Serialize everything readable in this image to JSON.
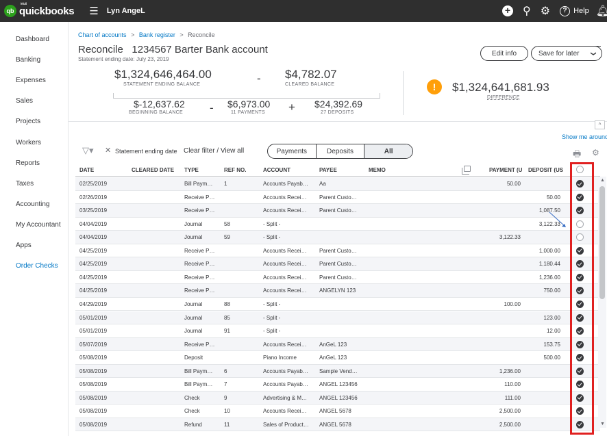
{
  "app": {
    "logo_small": "intuit",
    "logo_text": "quickbooks",
    "company": "Lyn AngeL",
    "help_label": "Help"
  },
  "sidebar": {
    "items": [
      {
        "label": "Dashboard"
      },
      {
        "label": "Banking"
      },
      {
        "label": "Expenses"
      },
      {
        "label": "Sales"
      },
      {
        "label": "Projects"
      },
      {
        "label": "Workers"
      },
      {
        "label": "Reports"
      },
      {
        "label": "Taxes"
      },
      {
        "label": "Accounting"
      },
      {
        "label": "My Accountant"
      },
      {
        "label": "Apps"
      },
      {
        "label": "Order Checks"
      }
    ]
  },
  "breadcrumb": {
    "chart": "Chart of accounts",
    "register": "Bank register",
    "current": "Reconcile",
    "sep": ">"
  },
  "header": {
    "title": "Reconcile   1234567 Barter Bank account",
    "subtitle": "Statement ending date: July 23, 2019",
    "edit_info": "Edit info",
    "save_later": "Save for later",
    "save_caret": "❯"
  },
  "summary": {
    "statement_ending_balance": "$1,324,646,464.00",
    "statement_ending_label": "STATEMENT ENDING BALANCE",
    "minus1": "-",
    "cleared_balance": "$4,782.07",
    "cleared_label": "CLEARED BALANCE",
    "beginning_balance": "$-12,637.62",
    "beginning_label": "BEGINNING BALANCE",
    "minus2": "-",
    "payments": "$6,973.00",
    "payments_label": "11 PAYMENTS",
    "plus": "+",
    "deposits": "$24,392.69",
    "deposits_label": "27 DEPOSITS",
    "difference": "$1,324,641,681.93",
    "difference_label": "DIFFERENCE",
    "warning_glyph": "!"
  },
  "toolbar": {
    "show_more": "Show me around",
    "filter_text": "Statement ending date",
    "clear_filter": "Clear filter / View all",
    "tabs": [
      "Payments",
      "Deposits",
      "All"
    ],
    "active_tab": "All",
    "collapse_glyph": "^"
  },
  "table": {
    "headers": {
      "date": "DATE",
      "cleared": "CLEARED DATE",
      "type": "TYPE",
      "ref": "REF NO.",
      "account": "ACCOUNT",
      "payee": "PAYEE",
      "memo": "MEMO",
      "payment": "PAYMENT (U",
      "deposit": "DEPOSIT (US"
    },
    "rows": [
      {
        "date": "02/25/2019",
        "type": "Bill Paym…",
        "ref": "1",
        "account": "Accounts Payab…",
        "payee": "Aa",
        "payment": "50.00",
        "deposit": "",
        "checked": true
      },
      {
        "date": "02/26/2019",
        "type": "Receive P…",
        "ref": "",
        "account": "Accounts Recei…",
        "payee": "Parent Custo…",
        "payment": "",
        "deposit": "50.00",
        "checked": true
      },
      {
        "date": "03/25/2019",
        "type": "Receive P…",
        "ref": "",
        "account": "Accounts Recei…",
        "payee": "Parent Custo…",
        "payment": "",
        "deposit": "1,087.50",
        "checked": true
      },
      {
        "date": "04/04/2019",
        "type": "Journal",
        "ref": "58",
        "account": "- Split -",
        "payee": "",
        "payment": "",
        "deposit": "3,122.33",
        "checked": false
      },
      {
        "date": "04/04/2019",
        "type": "Journal",
        "ref": "59",
        "account": "- Split -",
        "payee": "",
        "payment": "3,122.33",
        "deposit": "",
        "checked": false
      },
      {
        "date": "04/25/2019",
        "type": "Receive P…",
        "ref": "",
        "account": "Accounts Recei…",
        "payee": "Parent Custo…",
        "payment": "",
        "deposit": "1,000.00",
        "checked": true
      },
      {
        "date": "04/25/2019",
        "type": "Receive P…",
        "ref": "",
        "account": "Accounts Recei…",
        "payee": "Parent Custo…",
        "payment": "",
        "deposit": "1,180.44",
        "checked": true
      },
      {
        "date": "04/25/2019",
        "type": "Receive P…",
        "ref": "",
        "account": "Accounts Recei…",
        "payee": "Parent Custo…",
        "payment": "",
        "deposit": "1,236.00",
        "checked": true
      },
      {
        "date": "04/25/2019",
        "type": "Receive P…",
        "ref": "",
        "account": "Accounts Recei…",
        "payee": "ANGELYN 123",
        "payment": "",
        "deposit": "750.00",
        "checked": true
      },
      {
        "date": "04/29/2019",
        "type": "Journal",
        "ref": "88",
        "account": "- Split -",
        "payee": "",
        "payment": "100.00",
        "deposit": "",
        "checked": true
      },
      {
        "date": "05/01/2019",
        "type": "Journal",
        "ref": "85",
        "account": "- Split -",
        "payee": "",
        "payment": "",
        "deposit": "123.00",
        "checked": true
      },
      {
        "date": "05/01/2019",
        "type": "Journal",
        "ref": "91",
        "account": "- Split -",
        "payee": "",
        "payment": "",
        "deposit": "12.00",
        "checked": true
      },
      {
        "date": "05/07/2019",
        "type": "Receive P…",
        "ref": "",
        "account": "Accounts Recei…",
        "payee": "AnGeL 123",
        "payment": "",
        "deposit": "153.75",
        "checked": true
      },
      {
        "date": "05/08/2019",
        "type": "Deposit",
        "ref": "",
        "account": "Piano Income",
        "payee": "AnGeL 123",
        "payment": "",
        "deposit": "500.00",
        "checked": true
      },
      {
        "date": "05/08/2019",
        "type": "Bill Paym…",
        "ref": "6",
        "account": "Accounts Payab…",
        "payee": "Sample Vend…",
        "payment": "1,236.00",
        "deposit": "",
        "checked": true
      },
      {
        "date": "05/08/2019",
        "type": "Bill Paym…",
        "ref": "7",
        "account": "Accounts Payab…",
        "payee": "ANGEL 123456",
        "payment": "110.00",
        "deposit": "",
        "checked": true
      },
      {
        "date": "05/08/2019",
        "type": "Check",
        "ref": "9",
        "account": "Advertising & M…",
        "payee": "ANGEL 123456",
        "payment": "111.00",
        "deposit": "",
        "checked": true
      },
      {
        "date": "05/08/2019",
        "type": "Check",
        "ref": "10",
        "account": "Accounts Recei…",
        "payee": "ANGEL 5678",
        "payment": "2,500.00",
        "deposit": "",
        "checked": true
      },
      {
        "date": "05/08/2019",
        "type": "Refund",
        "ref": "11",
        "account": "Sales of Product…",
        "payee": "ANGEL 5678",
        "payment": "2,500.00",
        "deposit": "",
        "checked": true
      }
    ]
  },
  "colors": {
    "topbar": "#2f2f2f",
    "accent": "#2ca01c",
    "link": "#0077c5",
    "warning": "#ff9f0a",
    "highlight_box": "#e02020"
  }
}
